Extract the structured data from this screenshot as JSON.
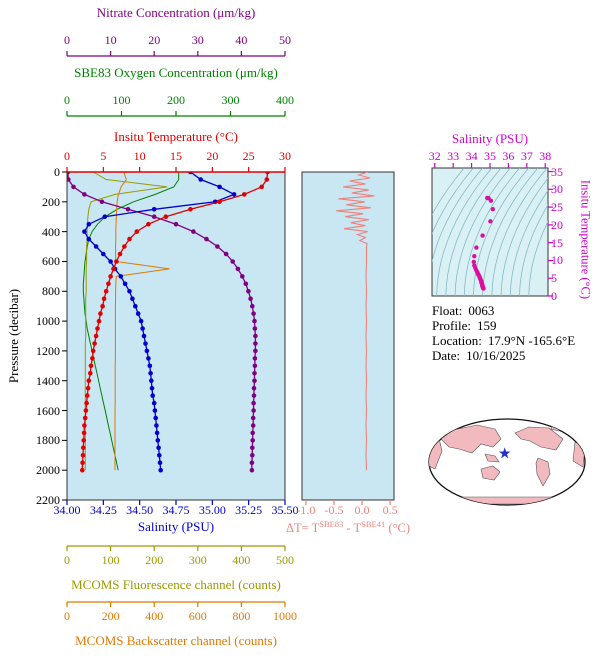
{
  "figure": {
    "background": "#ffffff",
    "plot_bg": "#c9e6f3",
    "ts_bg": "#d9f1f5",
    "map_land": "#f2b9bf",
    "map_ocean": "#ffffff"
  },
  "axes": {
    "nitrate": {
      "title": "Nitrate Concentration (μm/kg)",
      "color": "#800080",
      "range": [
        0,
        50
      ],
      "ticks": [
        0,
        10,
        20,
        30,
        40,
        50
      ]
    },
    "oxygen": {
      "title": "SBE83 Oxygen Concentration (μm/kg)",
      "color": "#008000",
      "range": [
        0,
        400
      ],
      "ticks": [
        0,
        100,
        200,
        300,
        400
      ]
    },
    "temperature": {
      "title": "Insitu Temperature (°C)",
      "color": "#e00000",
      "range": [
        0,
        30
      ],
      "ticks": [
        0,
        5,
        10,
        15,
        20,
        25,
        30
      ]
    },
    "pressure": {
      "title": "Pressure (decibar)",
      "color": "#000000",
      "range": [
        0,
        2200
      ],
      "ticks": [
        0,
        200,
        400,
        600,
        800,
        1000,
        1200,
        1400,
        1600,
        1800,
        2000,
        2200
      ]
    },
    "salinity": {
      "title": "Salinity (PSU)",
      "color": "#0000cd",
      "range": [
        34.0,
        35.5
      ],
      "ticks": [
        34.0,
        34.25,
        34.5,
        34.75,
        35.0,
        35.25,
        35.5
      ],
      "tick_labels": [
        "34.00",
        "34.25",
        "34.50",
        "34.75",
        "35.00",
        "35.25",
        "35.50"
      ]
    },
    "delta_t": {
      "prefix": "ΔT= T",
      "sup_a": "SBE83",
      "mid": " - T",
      "sup_b": "SBE41",
      "suffix": " (°C)",
      "color": "#f0827a",
      "range": [
        -1.07,
        0.57
      ],
      "ticks": [
        -1.0,
        -0.5,
        0.0,
        0.5
      ],
      "tick_labels": [
        "-1.0",
        "-0.5",
        "0.0",
        "0.5"
      ]
    },
    "fluorescence": {
      "title": "MCOMS Fluorescence channel (counts)",
      "color": "#9a9a00",
      "range": [
        0,
        500
      ],
      "ticks": [
        0,
        100,
        200,
        300,
        400,
        500
      ]
    },
    "backscatter": {
      "title": "MCOMS Backscatter channel (counts)",
      "color": "#e07800",
      "range": [
        0,
        1000
      ],
      "ticks": [
        0,
        200,
        400,
        600,
        800,
        1000
      ]
    },
    "ts_salinity": {
      "title": "Salinity (PSU)",
      "color": "#cc00cc",
      "range": [
        31.85,
        38.15
      ],
      "ticks": [
        32,
        33,
        34,
        35,
        36,
        37,
        38
      ]
    },
    "ts_temperature": {
      "title": "Insitu Temperature (°C)",
      "color": "#cc00cc",
      "range": [
        0,
        36
      ],
      "ticks": [
        0,
        5,
        10,
        15,
        20,
        25,
        30,
        35
      ]
    }
  },
  "info": {
    "rows": [
      {
        "label": "Float:",
        "value": "0063"
      },
      {
        "label": "Profile:",
        "value": "159"
      },
      {
        "label": "Location:",
        "value": "17.9°N -165.6°E"
      },
      {
        "label": "Date:",
        "value": "10/16/2025"
      }
    ]
  },
  "chart_data": [
    {
      "id": "profiles",
      "type": "line",
      "ylabel": "Pressure (decibar)",
      "ylim": [
        0,
        2200
      ],
      "pressures": [
        0,
        50,
        100,
        150,
        200,
        250,
        300,
        350,
        400,
        450,
        500,
        550,
        600,
        650,
        700,
        750,
        800,
        850,
        900,
        950,
        1000,
        1050,
        1100,
        1150,
        1200,
        1250,
        1300,
        1350,
        1400,
        1450,
        1500,
        1550,
        1600,
        1650,
        1700,
        1750,
        1800,
        1850,
        1900,
        1950,
        2000
      ],
      "series": [
        {
          "name": "Insitu Temperature",
          "units": "°C",
          "color": "#e00000",
          "xlim": [
            0,
            30
          ],
          "marker": true,
          "values": [
            27.6,
            27.5,
            26.8,
            24.4,
            21.0,
            17.0,
            13.6,
            11.2,
            9.6,
            8.6,
            7.9,
            7.3,
            6.8,
            6.4,
            6.0,
            5.7,
            5.4,
            5.1,
            4.9,
            4.6,
            4.4,
            4.2,
            4.0,
            3.8,
            3.6,
            3.5,
            3.3,
            3.2,
            3.0,
            2.9,
            2.8,
            2.7,
            2.6,
            2.5,
            2.4,
            2.35,
            2.3,
            2.25,
            2.2,
            2.15,
            2.1
          ]
        },
        {
          "name": "Salinity",
          "units": "PSU",
          "color": "#0000cd",
          "xlim": [
            34.0,
            35.5
          ],
          "marker": true,
          "values": [
            34.85,
            34.92,
            35.05,
            35.15,
            35.02,
            34.6,
            34.26,
            34.15,
            34.12,
            34.15,
            34.2,
            34.25,
            34.3,
            34.33,
            34.37,
            34.4,
            34.43,
            34.45,
            34.47,
            34.49,
            34.51,
            34.52,
            34.53,
            34.54,
            34.55,
            34.56,
            34.57,
            34.575,
            34.58,
            34.585,
            34.59,
            34.6,
            34.605,
            34.61,
            34.615,
            34.62,
            34.625,
            34.63,
            34.635,
            34.64,
            34.645
          ]
        },
        {
          "name": "Nitrate Concentration",
          "units": "μm/kg",
          "color": "#800080",
          "xlim": [
            0,
            50
          ],
          "marker": true,
          "values": [
            0.2,
            0.3,
            1.5,
            4.0,
            8.0,
            14.0,
            20.0,
            25.0,
            29.0,
            32.0,
            34.5,
            36.5,
            38.0,
            39.2,
            40.2,
            41.0,
            41.6,
            42.1,
            42.5,
            42.8,
            43.0,
            43.1,
            43.2,
            43.2,
            43.2,
            43.1,
            43.1,
            43.0,
            43.0,
            42.9,
            42.9,
            42.8,
            42.8,
            42.7,
            42.7,
            42.6,
            42.6,
            42.5,
            42.5,
            42.4,
            42.4
          ]
        },
        {
          "name": "SBE83 Oxygen Concentration",
          "units": "μm/kg",
          "color": "#008000",
          "xlim": [
            0,
            400
          ],
          "marker": false,
          "values": [
            205,
            205,
            196,
            162,
            122,
            92,
            70,
            56,
            46,
            40,
            37,
            35,
            33,
            32,
            31,
            30,
            30,
            31,
            32,
            33,
            35,
            37,
            40,
            43,
            46,
            49,
            52,
            55,
            58,
            61,
            64,
            67,
            70,
            73,
            76,
            79,
            82,
            85,
            88,
            91,
            94
          ]
        },
        {
          "name": "MCOMS Fluorescence channel",
          "units": "counts",
          "color": "#9a9a00",
          "xlim": [
            0,
            500
          ],
          "marker": false,
          "values": [
            60,
            90,
            230,
            110,
            55,
            50,
            48,
            47,
            46,
            46,
            45,
            45,
            45,
            44,
            44,
            44,
            44,
            43,
            43,
            43,
            43,
            43,
            43,
            42,
            42,
            42,
            42,
            42,
            42,
            42,
            42,
            42,
            42,
            42,
            42,
            42,
            42,
            42,
            42,
            42,
            42
          ]
        },
        {
          "name": "MCOMS Backscatter channel",
          "units": "counts",
          "color": "#e07800",
          "xlim": [
            0,
            1000
          ],
          "marker": false,
          "values": [
            260,
            272,
            248,
            236,
            230,
            228,
            226,
            225,
            224,
            224,
            223,
            223,
            224,
            470,
            226,
            224,
            223,
            223,
            222,
            222,
            222,
            222,
            222,
            222,
            222,
            222,
            221,
            221,
            221,
            221,
            221,
            221,
            220,
            220,
            220,
            220,
            220,
            220,
            220,
            220,
            220
          ]
        }
      ]
    },
    {
      "id": "delta_t",
      "type": "line",
      "xlabel": "ΔT= T(SBE83) - T(SBE41) (°C)",
      "color": "#f0827a",
      "xlim": [
        -1.07,
        0.57
      ],
      "xticks": [
        -1.0,
        -0.5,
        0.0,
        0.5
      ],
      "points": [
        [
          0,
          0.1
        ],
        [
          20,
          -0.06
        ],
        [
          40,
          0.14
        ],
        [
          60,
          -0.22
        ],
        [
          80,
          0.06
        ],
        [
          100,
          -0.34
        ],
        [
          120,
          0.12
        ],
        [
          140,
          -0.18
        ],
        [
          160,
          0.22
        ],
        [
          180,
          -0.42
        ],
        [
          200,
          0.05
        ],
        [
          220,
          -0.28
        ],
        [
          240,
          0.16
        ],
        [
          260,
          -0.46
        ],
        [
          280,
          0.02
        ],
        [
          300,
          -0.3
        ],
        [
          320,
          0.12
        ],
        [
          340,
          -0.2
        ],
        [
          360,
          0.06
        ],
        [
          380,
          -0.32
        ],
        [
          400,
          0.1
        ],
        [
          420,
          -0.08
        ],
        [
          440,
          0.06
        ],
        [
          460,
          -0.04
        ],
        [
          480,
          0.09
        ],
        [
          500,
          0.08
        ],
        [
          600,
          0.08
        ],
        [
          700,
          0.07
        ],
        [
          800,
          0.08
        ],
        [
          900,
          0.07
        ],
        [
          1000,
          0.08
        ],
        [
          1100,
          0.07
        ],
        [
          1200,
          0.08
        ],
        [
          1300,
          0.07
        ],
        [
          1400,
          0.08
        ],
        [
          1500,
          0.07
        ],
        [
          1600,
          0.08
        ],
        [
          1700,
          0.07
        ],
        [
          1800,
          0.08
        ],
        [
          1900,
          0.07
        ],
        [
          2000,
          0.08
        ]
      ]
    },
    {
      "id": "ts_diagram",
      "type": "scatter",
      "xlabel": "Salinity (PSU)",
      "ylabel": "Insitu Temperature (°C)",
      "xlim": [
        31.85,
        38.15
      ],
      "ylim": [
        0,
        36
      ],
      "xticks": [
        32,
        33,
        34,
        35,
        36,
        37,
        38
      ],
      "yticks": [
        0,
        5,
        10,
        15,
        20,
        25,
        30,
        35
      ],
      "marker_color": "#d810a0",
      "contour_count": 14,
      "note": "scatter points are (salinity, temperature) pairs from the profile series above; background curves are density guide contours"
    },
    {
      "id": "map",
      "type": "map",
      "marker": {
        "lat": 17.9,
        "lon": -165.6,
        "symbol": "star",
        "color": "#2233cc"
      }
    }
  ]
}
